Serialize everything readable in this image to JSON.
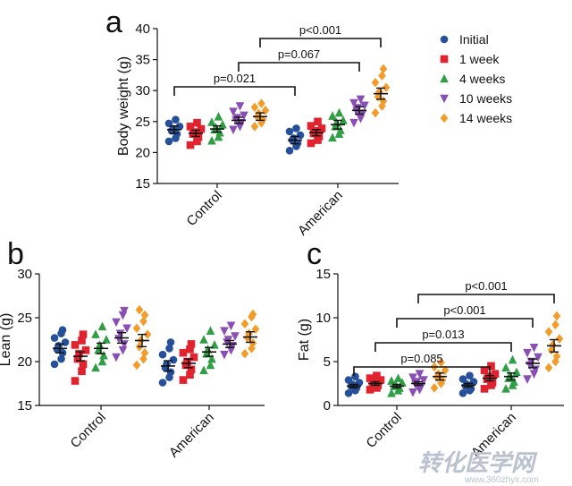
{
  "colors": {
    "Initial": "#27509a",
    "1 week": "#e0232e",
    "4 weeks": "#2f9e44",
    "10 weeks": "#8a4fb5",
    "14 weeks": "#f39c29",
    "text": "#111111"
  },
  "watermark": {
    "main": "转化医学网",
    "sub": "www.360zhyx.com"
  },
  "chart_data": [
    {
      "panel": "a",
      "type": "scatter",
      "ylabel": "Body weight (g)",
      "ylim": [
        15,
        40
      ],
      "yticks": [
        "15",
        "20",
        "25",
        "30",
        "35",
        "40"
      ],
      "categories": [
        "Control",
        "American"
      ],
      "legend": {
        "position": "right",
        "entries": [
          "Initial",
          "1 week",
          "4 weeks",
          "10 weeks",
          "14 weeks"
        ]
      },
      "series": [
        {
          "name": "Initial",
          "marker": "circle",
          "mean": [
            23.7,
            22.0
          ],
          "sem": [
            0.6,
            0.6
          ],
          "points": [
            [
              21.8,
              22.3,
              23.0,
              23.5,
              23.8,
              24.2,
              24.7,
              25.3
            ],
            [
              20.3,
              21.0,
              21.5,
              22.0,
              22.3,
              22.8,
              23.4,
              23.9
            ]
          ]
        },
        {
          "name": "1 week",
          "marker": "square",
          "mean": [
            23.1,
            23.2
          ],
          "sem": [
            0.5,
            0.5
          ],
          "points": [
            [
              21.2,
              21.8,
              22.5,
              23.0,
              23.3,
              23.8,
              24.2,
              24.8
            ],
            [
              21.5,
              22.0,
              22.6,
              23.1,
              23.5,
              23.9,
              24.3,
              25.0
            ]
          ]
        },
        {
          "name": "4 weeks",
          "marker": "triangle-up",
          "mean": [
            23.8,
            24.5
          ],
          "sem": [
            0.5,
            0.7
          ],
          "points": [
            [
              21.9,
              22.5,
              23.2,
              23.7,
              24.0,
              24.5,
              24.9,
              25.8
            ],
            [
              22.4,
              23.0,
              23.6,
              24.2,
              24.8,
              25.2,
              25.9,
              26.4
            ]
          ]
        },
        {
          "name": "10 weeks",
          "marker": "triangle-down",
          "mean": [
            25.2,
            26.8
          ],
          "sem": [
            0.5,
            0.6
          ],
          "points": [
            [
              23.7,
              24.2,
              24.8,
              25.2,
              25.6,
              26.0,
              26.6,
              27.5
            ],
            [
              24.8,
              25.5,
              26.1,
              26.7,
              27.2,
              27.6,
              28.0,
              28.6
            ]
          ]
        },
        {
          "name": "14 weeks",
          "marker": "diamond",
          "mean": [
            25.8,
            29.5
          ],
          "sem": [
            0.6,
            0.9
          ],
          "points": [
            [
              24.2,
              24.8,
              25.3,
              25.8,
              26.3,
              26.8,
              27.3,
              27.9
            ],
            [
              26.4,
              27.5,
              28.3,
              29.0,
              29.8,
              30.5,
              31.3,
              32.4,
              33.5
            ]
          ]
        }
      ],
      "annotations": [
        {
          "label": "p=0.021",
          "from": {
            "category": 0,
            "series": 0
          },
          "to": {
            "category": 1,
            "series": 0
          },
          "level": 1
        },
        {
          "label": "p=0.067",
          "from": {
            "category": 0,
            "series": 3
          },
          "to": {
            "category": 1,
            "series": 3
          },
          "level": 2
        },
        {
          "label": "p<0.001",
          "from": {
            "category": 0,
            "series": 4
          },
          "to": {
            "category": 1,
            "series": 4
          },
          "level": 3
        }
      ]
    },
    {
      "panel": "b",
      "type": "scatter",
      "ylabel": "Lean (g)",
      "ylim": [
        15,
        30
      ],
      "yticks": [
        "15",
        "20",
        "25",
        "30"
      ],
      "categories": [
        "Control",
        "American"
      ],
      "series": [
        {
          "name": "Initial",
          "marker": "circle",
          "mean": [
            21.5,
            19.5
          ],
          "sem": [
            0.5,
            0.6
          ],
          "points": [
            [
              19.7,
              20.3,
              21.0,
              21.4,
              21.8,
              22.2,
              22.7,
              23.2,
              23.6
            ],
            [
              17.6,
              18.2,
              18.8,
              19.3,
              19.7,
              20.2,
              20.8,
              21.5,
              22.2
            ]
          ]
        },
        {
          "name": "1 week",
          "marker": "square",
          "mean": [
            20.6,
            19.8
          ],
          "sem": [
            0.5,
            0.5
          ],
          "points": [
            [
              17.8,
              18.9,
              19.7,
              20.3,
              20.9,
              21.3,
              21.9,
              22.4,
              23.1
            ],
            [
              17.9,
              18.5,
              19.1,
              19.6,
              20.0,
              20.5,
              21.0,
              21.4,
              22.0
            ]
          ]
        },
        {
          "name": "4 weeks",
          "marker": "triangle-up",
          "mean": [
            21.5,
            21.1
          ],
          "sem": [
            0.6,
            0.5
          ],
          "points": [
            [
              19.3,
              20.0,
              20.7,
              21.3,
              21.9,
              22.5,
              23.1,
              24.0
            ],
            [
              19.0,
              19.6,
              20.3,
              20.9,
              21.4,
              21.9,
              22.5,
              23.5
            ]
          ]
        },
        {
          "name": "10 weeks",
          "marker": "triangle-down",
          "mean": [
            22.7,
            22.0
          ],
          "sem": [
            0.6,
            0.4
          ],
          "points": [
            [
              20.5,
              21.3,
              22.0,
              22.6,
              23.2,
              23.8,
              24.5,
              25.3,
              25.8
            ],
            [
              20.8,
              21.3,
              21.8,
              22.2,
              22.5,
              22.9,
              23.5,
              24.1
            ]
          ]
        },
        {
          "name": "14 weeks",
          "marker": "diamond",
          "mean": [
            22.4,
            22.8
          ],
          "sem": [
            0.7,
            0.6
          ],
          "points": [
            [
              19.6,
              20.3,
              21.0,
              21.7,
              22.4,
              23.1,
              23.8,
              24.6,
              25.3,
              25.9
            ],
            [
              20.9,
              21.5,
              22.1,
              22.7,
              23.2,
              23.7,
              24.3,
              25.1,
              25.4
            ]
          ]
        }
      ]
    },
    {
      "panel": "c",
      "type": "scatter",
      "ylabel": "Fat (g)",
      "ylim": [
        0,
        15
      ],
      "yticks": [
        "0",
        "5",
        "10",
        "15"
      ],
      "categories": [
        "Control",
        "American"
      ],
      "series": [
        {
          "name": "Initial",
          "marker": "circle",
          "mean": [
            2.2,
            2.3
          ],
          "sem": [
            0.2,
            0.2
          ],
          "points": [
            [
              1.4,
              1.7,
              2.0,
              2.2,
              2.4,
              2.6,
              2.9,
              3.3
            ],
            [
              1.4,
              1.7,
              1.9,
              2.2,
              2.4,
              2.7,
              3.0,
              3.4
            ]
          ]
        },
        {
          "name": "1 week",
          "marker": "square",
          "mean": [
            2.5,
            3.1
          ],
          "sem": [
            0.2,
            0.3
          ],
          "points": [
            [
              1.8,
              2.0,
              2.3,
              2.5,
              2.7,
              2.9,
              3.1,
              3.4
            ],
            [
              1.9,
              2.3,
              2.6,
              3.0,
              3.3,
              3.6,
              4.0,
              4.5
            ]
          ]
        },
        {
          "name": "4 weeks",
          "marker": "triangle-up",
          "mean": [
            2.2,
            3.3
          ],
          "sem": [
            0.2,
            0.4
          ],
          "points": [
            [
              1.4,
              1.7,
              2.0,
              2.2,
              2.4,
              2.6,
              2.8,
              3.1
            ],
            [
              1.9,
              2.3,
              2.7,
              3.1,
              3.4,
              3.8,
              4.3,
              5.2
            ]
          ]
        },
        {
          "name": "10 weeks",
          "marker": "triangle-down",
          "mean": [
            2.5,
            4.8
          ],
          "sem": [
            0.2,
            0.5
          ],
          "points": [
            [
              1.5,
              1.8,
              2.1,
              2.4,
              2.7,
              2.9,
              3.2,
              3.6
            ],
            [
              3.0,
              3.6,
              4.1,
              4.6,
              5.0,
              5.5,
              6.0,
              6.6
            ]
          ]
        },
        {
          "name": "14 weeks",
          "marker": "diamond",
          "mean": [
            3.3,
            6.8
          ],
          "sem": [
            0.4,
            0.7
          ],
          "points": [
            [
              2.0,
              2.5,
              2.9,
              3.2,
              3.6,
              4.0,
              4.4,
              4.9
            ],
            [
              4.3,
              5.0,
              5.6,
              6.3,
              6.9,
              7.6,
              8.4,
              9.2,
              10.2
            ]
          ]
        }
      ],
      "annotations": [
        {
          "label": "p=0.085",
          "from": {
            "category": 0,
            "series": 0
          },
          "to": {
            "category": 1,
            "series": 1
          },
          "level": 1
        },
        {
          "label": "p=0.013",
          "from": {
            "category": 0,
            "series": 1
          },
          "to": {
            "category": 1,
            "series": 2
          },
          "level": 2
        },
        {
          "label": "p<0.001",
          "from": {
            "category": 0,
            "series": 2
          },
          "to": {
            "category": 1,
            "series": 3
          },
          "level": 3
        },
        {
          "label": "p<0.001",
          "from": {
            "category": 0,
            "series": 3
          },
          "to": {
            "category": 1,
            "series": 4
          },
          "level": 4
        }
      ]
    }
  ]
}
